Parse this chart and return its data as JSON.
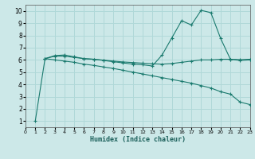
{
  "xlabel": "Humidex (Indice chaleur)",
  "xlim": [
    0,
    23
  ],
  "ylim": [
    0.5,
    10.5
  ],
  "yticks": [
    1,
    2,
    3,
    4,
    5,
    6,
    7,
    8,
    9,
    10
  ],
  "xticks": [
    0,
    1,
    2,
    3,
    4,
    5,
    6,
    7,
    8,
    9,
    10,
    11,
    12,
    13,
    14,
    15,
    16,
    17,
    18,
    19,
    20,
    21,
    22,
    23
  ],
  "bg_color": "#cce8e8",
  "grid_color": "#b0d8d8",
  "line_color": "#1a7a6e",
  "line1_x": [
    1,
    2,
    3,
    4,
    5,
    6,
    7,
    8,
    9,
    10,
    11,
    12,
    13,
    14,
    15,
    16,
    17,
    18,
    19,
    20,
    21,
    22,
    23
  ],
  "line1_y": [
    1.0,
    6.1,
    6.35,
    6.4,
    6.25,
    6.1,
    6.05,
    5.95,
    5.85,
    5.75,
    5.65,
    5.6,
    5.5,
    6.4,
    7.8,
    9.2,
    8.85,
    10.05,
    9.85,
    7.75,
    6.05,
    5.95,
    6.0
  ],
  "line2_x": [
    2,
    3,
    4,
    5,
    6,
    7,
    8,
    9,
    10,
    11,
    12,
    13,
    14,
    15,
    16,
    17,
    18,
    19,
    20,
    21,
    22,
    23
  ],
  "line2_y": [
    6.1,
    6.3,
    6.3,
    6.2,
    6.1,
    6.05,
    5.98,
    5.9,
    5.83,
    5.78,
    5.73,
    5.68,
    5.65,
    5.7,
    5.8,
    5.9,
    6.0,
    6.0,
    6.05,
    6.05,
    6.02,
    6.05
  ],
  "line3_x": [
    2,
    3,
    4,
    5,
    6,
    7,
    8,
    9,
    10,
    11,
    12,
    13,
    14,
    15,
    16,
    17,
    18,
    19,
    20,
    21,
    22,
    23
  ],
  "line3_y": [
    6.1,
    6.0,
    5.9,
    5.8,
    5.65,
    5.55,
    5.42,
    5.3,
    5.15,
    5.0,
    4.85,
    4.7,
    4.55,
    4.4,
    4.25,
    4.1,
    3.9,
    3.7,
    3.4,
    3.2,
    2.55,
    2.35
  ]
}
